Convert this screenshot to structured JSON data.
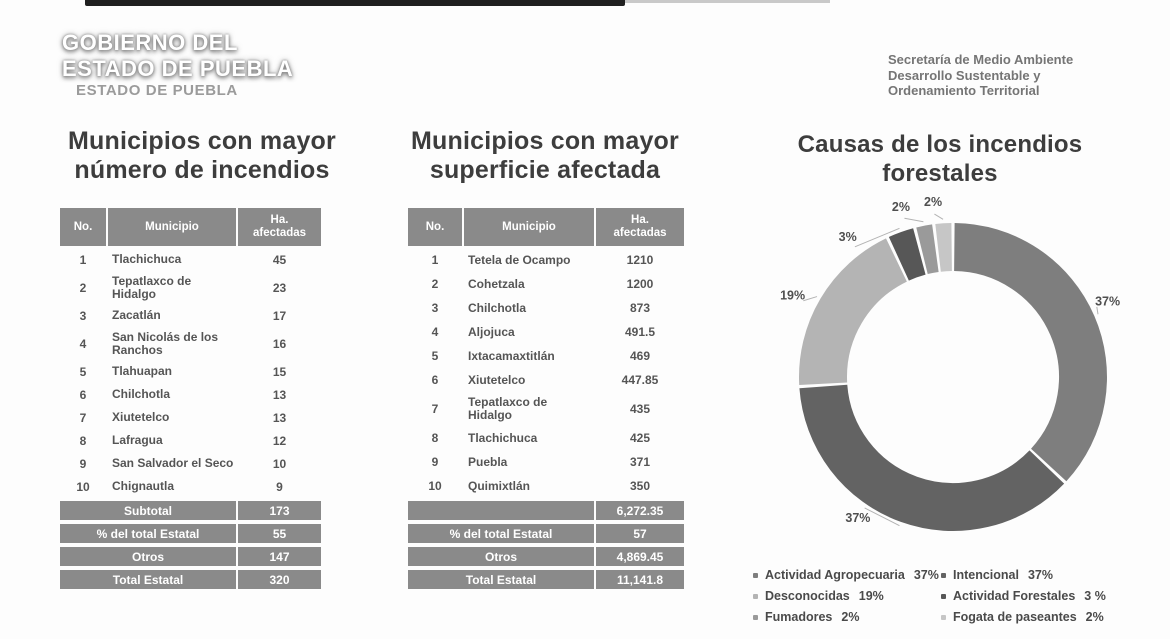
{
  "logo": {
    "line1": "GOBIERNO DEL",
    "line2": "ESTADO DE PUEBLA",
    "line3": "ESTADO DE PUEBLA"
  },
  "secretaria": {
    "line1": "Secretaría de Medio Ambiente",
    "line2": "Desarrollo Sustentable y",
    "line3": "Ordenamiento Territorial"
  },
  "table1": {
    "title_line1": "Municipios con mayor",
    "title_line2": "número de incendios",
    "headers": {
      "no": "No.",
      "municipio": "Municipio",
      "ha": "Ha.\nafectadas"
    },
    "rows": [
      {
        "no": "1",
        "municipio": "Tlachichuca",
        "ha": "45"
      },
      {
        "no": "2",
        "municipio": "Tepatlaxco de\nHidalgo",
        "ha": "23"
      },
      {
        "no": "3",
        "municipio": "Zacatlán",
        "ha": "17"
      },
      {
        "no": "4",
        "municipio": "San Nicolás de los\nRanchos",
        "ha": "16"
      },
      {
        "no": "5",
        "municipio": "Tlahuapan",
        "ha": "15"
      },
      {
        "no": "6",
        "municipio": "Chilchotla",
        "ha": "13"
      },
      {
        "no": "7",
        "municipio": "Xiutetelco",
        "ha": "13"
      },
      {
        "no": "8",
        "municipio": "Lafragua",
        "ha": "12"
      },
      {
        "no": "9",
        "municipio": "San Salvador el Seco",
        "ha": "10"
      },
      {
        "no": "10",
        "municipio": "Chignautla",
        "ha": "9"
      }
    ],
    "footer": [
      {
        "label": "Subtotal",
        "value": "173"
      },
      {
        "label": "% del total Estatal",
        "value": "55"
      },
      {
        "label": "Otros",
        "value": "147"
      },
      {
        "label": "Total Estatal",
        "value": "320"
      }
    ]
  },
  "table2": {
    "title_line1": "Municipios con mayor",
    "title_line2": "superficie afectada",
    "headers": {
      "no": "No.",
      "municipio": "Municipio",
      "ha": "Ha.\nafectadas"
    },
    "rows": [
      {
        "no": "1",
        "municipio": "Tetela de Ocampo",
        "ha": "1210"
      },
      {
        "no": "2",
        "municipio": "Cohetzala",
        "ha": "1200"
      },
      {
        "no": "3",
        "municipio": "Chilchotla",
        "ha": "873"
      },
      {
        "no": "4",
        "municipio": "Aljojuca",
        "ha": "491.5"
      },
      {
        "no": "5",
        "municipio": "Ixtacamaxtitlán",
        "ha": "469"
      },
      {
        "no": "6",
        "municipio": "Xiutetelco",
        "ha": "447.85"
      },
      {
        "no": "7",
        "municipio": "Tepatlaxco de\nHidalgo",
        "ha": "435"
      },
      {
        "no": "8",
        "municipio": "Tlachichuca",
        "ha": "425"
      },
      {
        "no": "9",
        "municipio": "Puebla",
        "ha": "371"
      },
      {
        "no": "10",
        "municipio": "Quimixtlán",
        "ha": "350"
      }
    ],
    "footer": [
      {
        "label": "",
        "value": "6,272.35"
      },
      {
        "label": "% del total Estatal",
        "value": "57"
      },
      {
        "label": "Otros",
        "value": "4,869.45"
      },
      {
        "label": "Total Estatal",
        "value": "11,141.8"
      }
    ]
  },
  "chart_data": {
    "type": "pie",
    "donut": true,
    "title": "Causas de los incendios forestales",
    "title_line1": "Causas de los incendios",
    "title_line2": "forestales",
    "legend_position": "bottom",
    "segments": [
      {
        "name": "Actividad Agropecuaria",
        "value": 37,
        "pct_label": "37%",
        "legend_pct": "37%",
        "color": "#7e7e7e"
      },
      {
        "name": "Intencional",
        "value": 37,
        "pct_label": "37%",
        "legend_pct": "37%",
        "color": "#636363"
      },
      {
        "name": "Desconocidas",
        "value": 19,
        "pct_label": "19%",
        "legend_pct": "19%",
        "color": "#b4b4b4"
      },
      {
        "name": "Actividad Forestales",
        "value": 3,
        "pct_label": "3%",
        "legend_pct": "3 %",
        "color": "#575757"
      },
      {
        "name": "Fumadores",
        "value": 2,
        "pct_label": "2%",
        "legend_pct": "2%",
        "color": "#9a9a9a"
      },
      {
        "name": "Fogata de paseantes",
        "value": 2,
        "pct_label": "2%",
        "legend_pct": "2%",
        "color": "#c6c6c6"
      }
    ],
    "legend_columns": [
      [
        0,
        2,
        4
      ],
      [
        1,
        3,
        5
      ]
    ]
  }
}
